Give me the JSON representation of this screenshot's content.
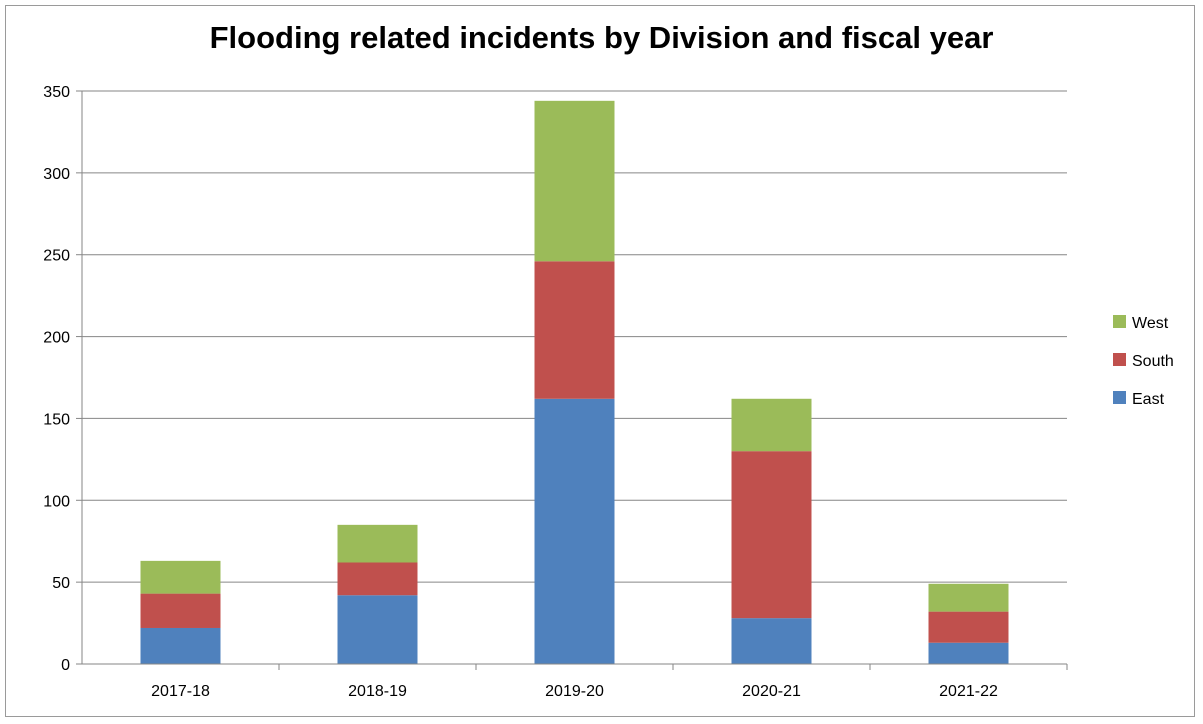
{
  "chart_data": {
    "type": "bar",
    "stacked": true,
    "title": "Flooding related incidents by Division and fiscal year",
    "xlabel": "",
    "ylabel": "",
    "categories": [
      "2017-18",
      "2018-19",
      "2019-20",
      "2020-21",
      "2021-22"
    ],
    "series": [
      {
        "name": "East",
        "color": "#4f81bd",
        "values": [
          22,
          42,
          162,
          28,
          13
        ]
      },
      {
        "name": "South",
        "color": "#c0504d",
        "values": [
          21,
          20,
          84,
          102,
          19
        ]
      },
      {
        "name": "West",
        "color": "#9bbb59",
        "values": [
          20,
          23,
          98,
          32,
          17
        ]
      }
    ],
    "ylim": [
      0,
      350
    ],
    "yticks": [
      0,
      50,
      100,
      150,
      200,
      250,
      300,
      350
    ],
    "grid": true,
    "legend_position": "right",
    "legend_order": [
      "West",
      "South",
      "East"
    ]
  }
}
